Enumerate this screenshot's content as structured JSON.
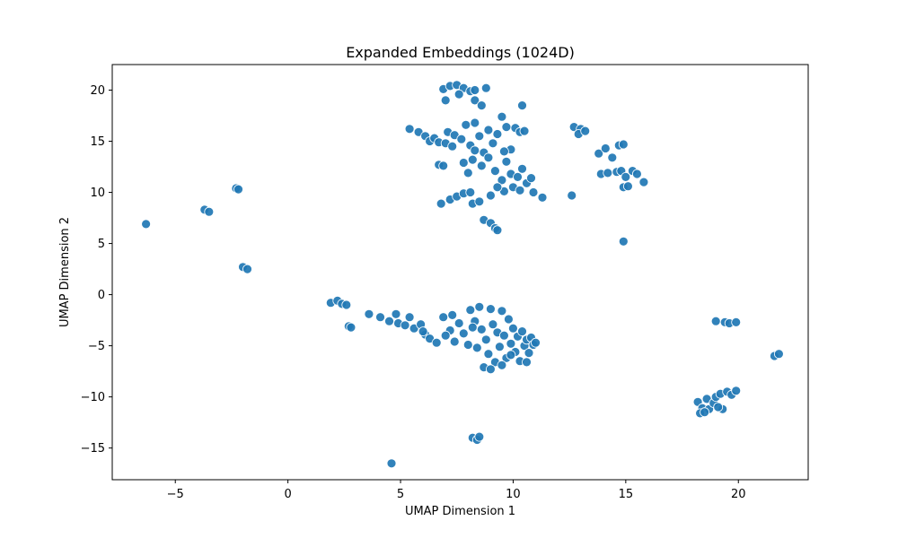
{
  "chart_data": {
    "type": "scatter",
    "title": "Expanded Embeddings (1024D)",
    "xlabel": "UMAP Dimension 1",
    "ylabel": "UMAP Dimension 2",
    "xlim": [
      -7.8,
      23.1
    ],
    "ylim": [
      -18.1,
      22.5
    ],
    "xticks": [
      -5,
      0,
      5,
      10,
      15,
      20
    ],
    "yticks": [
      -15,
      -10,
      -5,
      0,
      5,
      10,
      15,
      20
    ],
    "grid": false,
    "legend": "none",
    "point_color": "#1f77b4",
    "point_edge_color": "#ffffff",
    "series": [
      {
        "points": [
          [
            -6.3,
            6.9
          ],
          [
            -3.7,
            8.3
          ],
          [
            -3.5,
            8.1
          ],
          [
            -2.3,
            10.4
          ],
          [
            -2.2,
            10.3
          ],
          [
            -2.0,
            2.7
          ],
          [
            -1.8,
            2.5
          ],
          [
            1.9,
            -0.8
          ],
          [
            2.2,
            -0.6
          ],
          [
            2.4,
            -0.9
          ],
          [
            2.6,
            -1.0
          ],
          [
            2.7,
            -3.1
          ],
          [
            2.8,
            -3.2
          ],
          [
            3.6,
            -1.9
          ],
          [
            4.1,
            -2.2
          ],
          [
            4.5,
            -2.6
          ],
          [
            4.9,
            -2.8
          ],
          [
            5.2,
            -3.0
          ],
          [
            5.6,
            -3.3
          ],
          [
            5.9,
            -2.9
          ],
          [
            6.1,
            -3.9
          ],
          [
            6.3,
            -4.3
          ],
          [
            6.6,
            -4.7
          ],
          [
            6.9,
            -2.2
          ],
          [
            7.2,
            -3.5
          ],
          [
            7.4,
            -4.6
          ],
          [
            7.6,
            -2.8
          ],
          [
            7.8,
            -3.8
          ],
          [
            8.0,
            -4.9
          ],
          [
            8.1,
            -1.5
          ],
          [
            8.3,
            -2.6
          ],
          [
            8.4,
            -5.2
          ],
          [
            8.5,
            -1.2
          ],
          [
            8.6,
            -3.4
          ],
          [
            8.8,
            -4.4
          ],
          [
            8.9,
            -5.8
          ],
          [
            9.0,
            -1.4
          ],
          [
            9.1,
            -2.9
          ],
          [
            9.2,
            -6.6
          ],
          [
            9.3,
            -3.7
          ],
          [
            9.4,
            -5.1
          ],
          [
            9.5,
            -1.6
          ],
          [
            9.6,
            -4.0
          ],
          [
            9.7,
            -6.2
          ],
          [
            9.8,
            -2.4
          ],
          [
            9.9,
            -4.8
          ],
          [
            10.0,
            -3.3
          ],
          [
            10.1,
            -5.6
          ],
          [
            10.2,
            -4.1
          ],
          [
            10.3,
            -6.5
          ],
          [
            10.4,
            -3.6
          ],
          [
            10.5,
            -5.0
          ],
          [
            10.6,
            -4.4
          ],
          [
            10.7,
            -5.7
          ],
          [
            10.8,
            -4.2
          ],
          [
            10.9,
            -4.9
          ],
          [
            11.0,
            -4.7
          ],
          [
            8.7,
            -7.1
          ],
          [
            9.0,
            -7.3
          ],
          [
            9.5,
            -6.9
          ],
          [
            7.0,
            -4.0
          ],
          [
            6.0,
            -3.6
          ],
          [
            4.8,
            -1.9
          ],
          [
            5.4,
            -2.2
          ],
          [
            7.3,
            -2.0
          ],
          [
            8.2,
            -3.2
          ],
          [
            9.9,
            -5.9
          ],
          [
            10.6,
            -6.6
          ],
          [
            4.6,
            -16.5
          ],
          [
            8.2,
            -14.0
          ],
          [
            8.4,
            -14.2
          ],
          [
            8.5,
            -13.9
          ],
          [
            6.9,
            20.1
          ],
          [
            7.2,
            20.4
          ],
          [
            7.5,
            20.5
          ],
          [
            7.8,
            20.2
          ],
          [
            8.1,
            19.9
          ],
          [
            8.3,
            20.0
          ],
          [
            8.8,
            20.2
          ],
          [
            7.0,
            19.0
          ],
          [
            7.6,
            19.6
          ],
          [
            8.3,
            19.0
          ],
          [
            8.6,
            18.5
          ],
          [
            10.4,
            18.5
          ],
          [
            5.4,
            16.2
          ],
          [
            5.8,
            15.9
          ],
          [
            6.1,
            15.5
          ],
          [
            6.3,
            15.0
          ],
          [
            6.5,
            15.3
          ],
          [
            6.7,
            14.9
          ],
          [
            7.1,
            15.9
          ],
          [
            7.4,
            15.6
          ],
          [
            7.7,
            15.2
          ],
          [
            7.9,
            16.6
          ],
          [
            8.1,
            14.6
          ],
          [
            8.3,
            16.8
          ],
          [
            8.5,
            15.5
          ],
          [
            8.7,
            13.9
          ],
          [
            8.9,
            16.1
          ],
          [
            9.1,
            14.8
          ],
          [
            9.3,
            15.7
          ],
          [
            9.5,
            17.4
          ],
          [
            9.7,
            16.4
          ],
          [
            9.9,
            14.2
          ],
          [
            10.1,
            16.3
          ],
          [
            10.3,
            15.9
          ],
          [
            10.5,
            16.0
          ],
          [
            7.8,
            12.9
          ],
          [
            8.0,
            11.9
          ],
          [
            8.2,
            13.2
          ],
          [
            8.6,
            12.6
          ],
          [
            8.9,
            13.4
          ],
          [
            9.2,
            12.1
          ],
          [
            9.5,
            11.2
          ],
          [
            9.7,
            13.0
          ],
          [
            9.9,
            11.8
          ],
          [
            10.0,
            10.5
          ],
          [
            10.2,
            11.5
          ],
          [
            10.4,
            12.3
          ],
          [
            10.6,
            10.9
          ],
          [
            10.8,
            11.4
          ],
          [
            10.9,
            10.0
          ],
          [
            11.3,
            9.5
          ],
          [
            9.6,
            10.1
          ],
          [
            10.3,
            10.2
          ],
          [
            6.7,
            12.7
          ],
          [
            6.9,
            12.6
          ],
          [
            6.8,
            8.9
          ],
          [
            7.2,
            9.3
          ],
          [
            7.5,
            9.6
          ],
          [
            7.8,
            9.9
          ],
          [
            8.1,
            10.0
          ],
          [
            8.2,
            8.9
          ],
          [
            8.5,
            9.1
          ],
          [
            9.0,
            9.7
          ],
          [
            9.3,
            10.5
          ],
          [
            8.7,
            7.3
          ],
          [
            9.0,
            7.0
          ],
          [
            9.2,
            6.5
          ],
          [
            9.3,
            6.3
          ],
          [
            7.0,
            14.8
          ],
          [
            7.3,
            14.5
          ],
          [
            8.3,
            14.1
          ],
          [
            9.6,
            14.0
          ],
          [
            12.6,
            9.7
          ],
          [
            12.7,
            16.4
          ],
          [
            13.0,
            16.2
          ],
          [
            12.9,
            15.7
          ],
          [
            13.2,
            16.0
          ],
          [
            13.8,
            13.8
          ],
          [
            14.1,
            14.3
          ],
          [
            14.4,
            13.4
          ],
          [
            14.7,
            14.6
          ],
          [
            14.9,
            14.7
          ],
          [
            13.9,
            11.8
          ],
          [
            14.2,
            11.9
          ],
          [
            14.6,
            12.0
          ],
          [
            14.8,
            12.1
          ],
          [
            15.0,
            11.5
          ],
          [
            15.3,
            12.1
          ],
          [
            15.5,
            11.8
          ],
          [
            15.8,
            11.0
          ],
          [
            14.9,
            10.5
          ],
          [
            15.1,
            10.6
          ],
          [
            14.9,
            5.2
          ],
          [
            19.0,
            -2.6
          ],
          [
            19.4,
            -2.7
          ],
          [
            19.6,
            -2.8
          ],
          [
            19.9,
            -2.7
          ],
          [
            18.2,
            -10.5
          ],
          [
            18.4,
            -11.1
          ],
          [
            18.3,
            -11.6
          ],
          [
            18.6,
            -10.2
          ],
          [
            18.7,
            -11.2
          ],
          [
            18.9,
            -10.6
          ],
          [
            19.0,
            -10.0
          ],
          [
            19.2,
            -9.7
          ],
          [
            19.3,
            -11.2
          ],
          [
            19.5,
            -9.5
          ],
          [
            19.7,
            -9.8
          ],
          [
            19.9,
            -9.4
          ],
          [
            18.5,
            -11.5
          ],
          [
            19.1,
            -11.0
          ],
          [
            21.6,
            -6.0
          ],
          [
            21.8,
            -5.8
          ]
        ]
      }
    ]
  }
}
